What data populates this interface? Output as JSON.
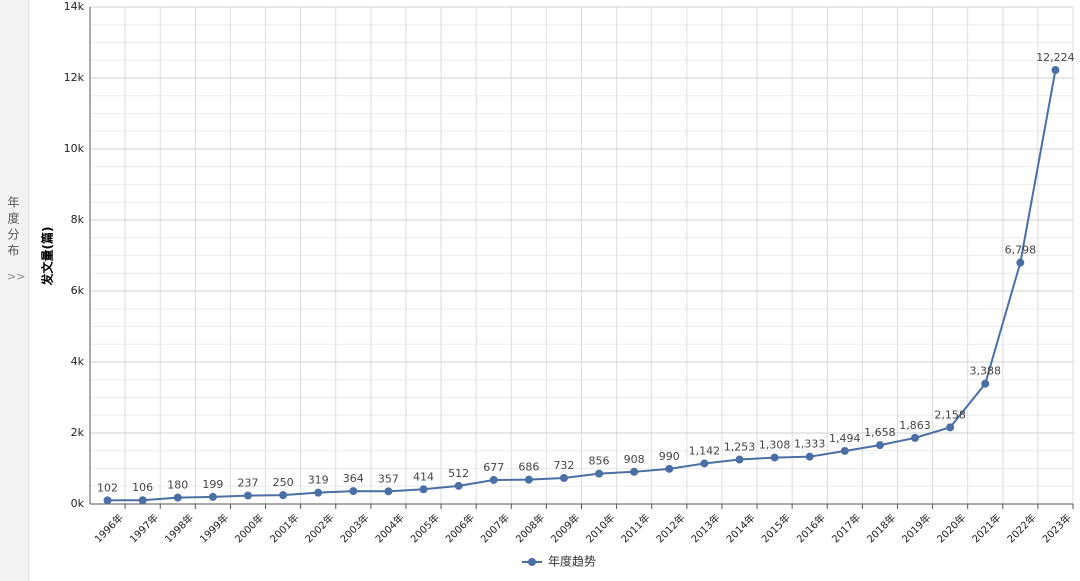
{
  "sidebar": {
    "label": "年度分布",
    "toggle": ">>"
  },
  "chart_data": {
    "type": "line",
    "y_label": "发文量(篇)",
    "categories": [
      "1996年",
      "1997年",
      "1998年",
      "1999年",
      "2000年",
      "2001年",
      "2002年",
      "2003年",
      "2004年",
      "2005年",
      "2006年",
      "2007年",
      "2008年",
      "2009年",
      "2010年",
      "2011年",
      "2012年",
      "2013年",
      "2014年",
      "2015年",
      "2016年",
      "2017年",
      "2018年",
      "2019年",
      "2020年",
      "2021年",
      "2022年",
      "2023年"
    ],
    "series": [
      {
        "name": "年度趋势",
        "color": "#4a6fa5",
        "values": [
          102,
          106,
          180,
          199,
          237,
          250,
          319,
          364,
          357,
          414,
          512,
          677,
          686,
          732,
          856,
          908,
          990,
          1142,
          1253,
          1308,
          1333,
          1494,
          1658,
          1863,
          2158,
          3388,
          6798,
          12224
        ],
        "value_labels": [
          "102",
          "106",
          "180",
          "199",
          "237",
          "250",
          "319",
          "364",
          "357",
          "414",
          "512",
          "677",
          "686",
          "732",
          "856",
          "908",
          "990",
          "1,142",
          "1,253",
          "1,308",
          "1,333",
          "1,494",
          "1,658",
          "1,863",
          "2,158",
          "3,388",
          "6,798",
          "12,224"
        ]
      }
    ],
    "ylim": [
      0,
      14000
    ],
    "yticks": [
      {
        "value": 0,
        "label": "0k"
      },
      {
        "value": 2000,
        "label": "2k"
      },
      {
        "value": 4000,
        "label": "4k"
      },
      {
        "value": 6000,
        "label": "6k"
      },
      {
        "value": 8000,
        "label": "8k"
      },
      {
        "value": 10000,
        "label": "10k"
      },
      {
        "value": 12000,
        "label": "12k"
      },
      {
        "value": 14000,
        "label": "14k"
      }
    ],
    "grid": true
  }
}
